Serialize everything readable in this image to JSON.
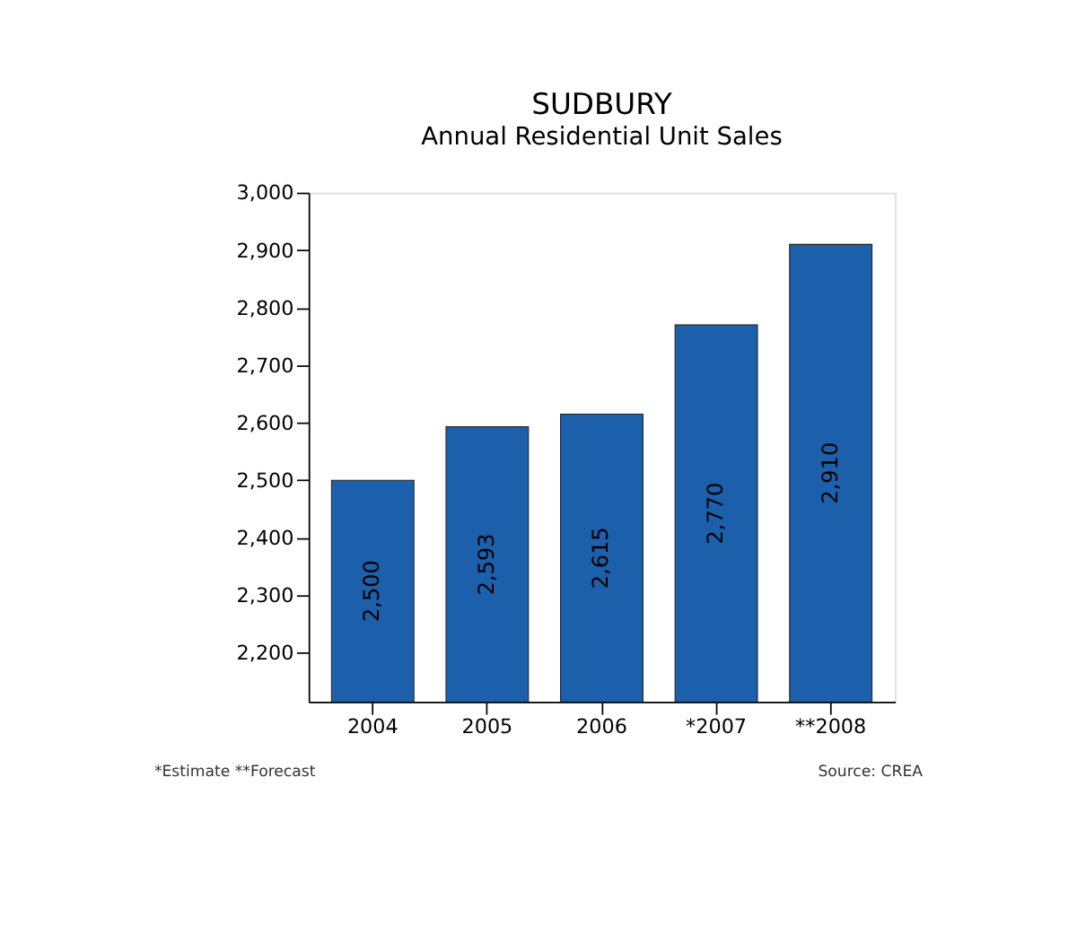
{
  "chart_data": {
    "type": "bar",
    "title": "SUDBURY",
    "subtitle": "Annual Residential Unit Sales",
    "categories": [
      "2004",
      "2005",
      "2006",
      "*2007",
      "**2008"
    ],
    "values": [
      2500,
      2593,
      2615,
      2770,
      2910
    ],
    "value_labels": [
      "2,500",
      "2,593",
      "2,615",
      "2,770",
      "2,910"
    ],
    "color": "#1c5fab",
    "ylim": [
      2115,
      3000
    ],
    "yticks": [
      {
        "value": 2200,
        "label": "2,200"
      },
      {
        "value": 2300,
        "label": "2,300"
      },
      {
        "value": 2400,
        "label": "2,400"
      },
      {
        "value": 2500,
        "label": "2,500"
      },
      {
        "value": 2600,
        "label": "2,600"
      },
      {
        "value": 2700,
        "label": "2,700"
      },
      {
        "value": 2800,
        "label": "2,800"
      },
      {
        "value": 2900,
        "label": "2,900"
      },
      {
        "value": 3000,
        "label": "3,000"
      }
    ],
    "grid": false,
    "annotations": [
      "*Estimate  **Forecast",
      "Source: CREA"
    ]
  }
}
